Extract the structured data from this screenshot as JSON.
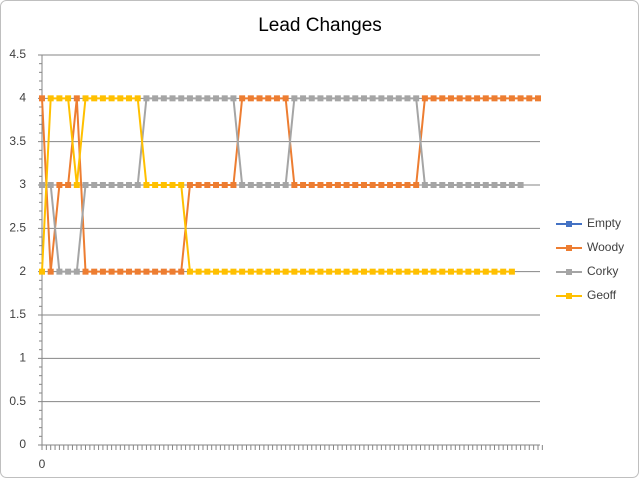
{
  "chart_data": {
    "type": "line",
    "title": "Lead Changes",
    "categories": [
      "0",
      null,
      null,
      null,
      null,
      null,
      null,
      null,
      null,
      null,
      null,
      null,
      null,
      null,
      null,
      null,
      null,
      null,
      null,
      null,
      null,
      null,
      null,
      null,
      null,
      null,
      null,
      null,
      null,
      null,
      null,
      null,
      null,
      null,
      null,
      null,
      null,
      null,
      null,
      null,
      null,
      null,
      null,
      null,
      null,
      null,
      null,
      null,
      null,
      null,
      null,
      null,
      null,
      null,
      null,
      null,
      null,
      null
    ],
    "series": [
      {
        "name": "Empty",
        "color": "#4472c4",
        "values": [
          null,
          null,
          null,
          null,
          null,
          null,
          null,
          null,
          null,
          null,
          null,
          null,
          null,
          null,
          null,
          null,
          null,
          null,
          null,
          null,
          null,
          null,
          null,
          null,
          null,
          null,
          null,
          null,
          null,
          null,
          null,
          null,
          null,
          null,
          null,
          null,
          null,
          null,
          null,
          null,
          null,
          null,
          null,
          null,
          null,
          null,
          null,
          null,
          null,
          null,
          null,
          null,
          null,
          null,
          null,
          null,
          null,
          null
        ]
      },
      {
        "name": "Woody",
        "color": "#ed7d31",
        "values": [
          4,
          2,
          3,
          3,
          4,
          2,
          2,
          2,
          2,
          2,
          2,
          2,
          2,
          2,
          2,
          2,
          2,
          3,
          3,
          3,
          3,
          3,
          3,
          4,
          4,
          4,
          4,
          4,
          4,
          3,
          3,
          3,
          3,
          3,
          3,
          3,
          3,
          3,
          3,
          3,
          3,
          3,
          3,
          3,
          4,
          4,
          4,
          4,
          4,
          4,
          4,
          4,
          4,
          4,
          4,
          4,
          4,
          4
        ]
      },
      {
        "name": "Corky",
        "color": "#a5a5a5",
        "values": [
          3,
          3,
          2,
          2,
          2,
          3,
          3,
          3,
          3,
          3,
          3,
          3,
          4,
          4,
          4,
          4,
          4,
          4,
          4,
          4,
          4,
          4,
          4,
          3,
          3,
          3,
          3,
          3,
          3,
          4,
          4,
          4,
          4,
          4,
          4,
          4,
          4,
          4,
          4,
          4,
          4,
          4,
          4,
          4,
          3,
          3,
          3,
          3,
          3,
          3,
          3,
          3,
          3,
          3,
          3,
          3,
          null,
          null
        ]
      },
      {
        "name": "Geoff",
        "color": "#ffc000",
        "values": [
          2,
          4,
          4,
          4,
          3,
          4,
          4,
          4,
          4,
          4,
          4,
          4,
          3,
          3,
          3,
          3,
          3,
          2,
          2,
          2,
          2,
          2,
          2,
          2,
          2,
          2,
          2,
          2,
          2,
          2,
          2,
          2,
          2,
          2,
          2,
          2,
          2,
          2,
          2,
          2,
          2,
          2,
          2,
          2,
          2,
          2,
          2,
          2,
          2,
          2,
          2,
          2,
          2,
          2,
          2,
          null,
          null,
          null
        ]
      }
    ],
    "ylim": [
      0,
      4.5
    ],
    "yticks": [
      0,
      0.5,
      1,
      1.5,
      2,
      2.5,
      3,
      3.5,
      4,
      4.5
    ],
    "grid": true,
    "legend": "right"
  }
}
